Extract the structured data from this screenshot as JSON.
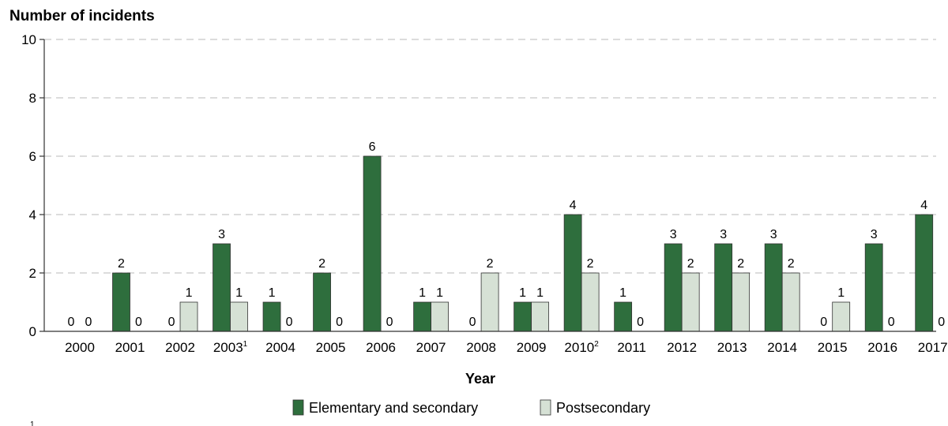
{
  "chart_data": {
    "type": "bar",
    "ylabel": "Number of incidents",
    "xlabel": "Year",
    "ylim": [
      0,
      10
    ],
    "yticks": [
      "0",
      "2",
      "4",
      "6",
      "8",
      "10"
    ],
    "grid": "dashed horizontal",
    "legend_position": "bottom",
    "categories": [
      "2000",
      "2001",
      "2002",
      "2003",
      "2004",
      "2005",
      "2006",
      "2007",
      "2008",
      "2009",
      "2010",
      "2011",
      "2012",
      "2013",
      "2014",
      "2015",
      "2016",
      "2017"
    ],
    "category_footnotes": [
      "",
      "",
      "",
      "1",
      "",
      "",
      "",
      "",
      "",
      "",
      "2",
      "",
      "",
      "",
      "",
      "",
      "",
      ""
    ],
    "series": [
      {
        "name": "Elementary and secondary",
        "color": "#2e6e3d",
        "values": [
          0,
          2,
          0,
          3,
          1,
          2,
          6,
          1,
          0,
          1,
          4,
          1,
          3,
          3,
          3,
          0,
          3,
          4
        ]
      },
      {
        "name": "Postsecondary",
        "color": "#d6e1d5",
        "values": [
          0,
          0,
          1,
          1,
          0,
          0,
          0,
          1,
          2,
          1,
          2,
          0,
          2,
          2,
          2,
          1,
          0,
          0
        ]
      }
    ],
    "bottom_note": "1"
  }
}
